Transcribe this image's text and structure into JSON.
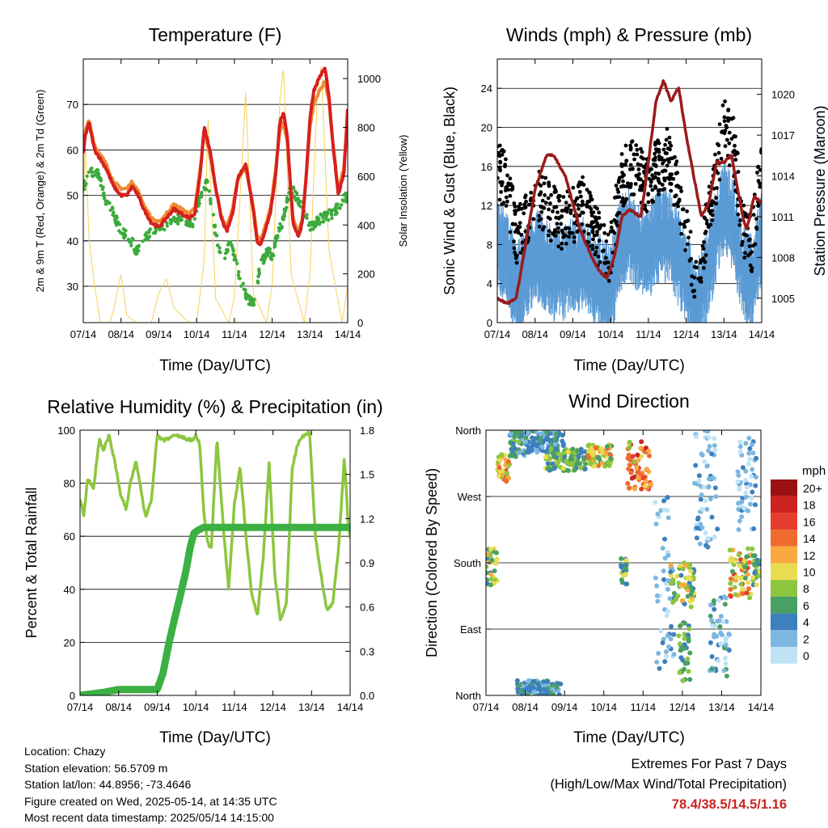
{
  "x_ticks": [
    "07/14",
    "08/14",
    "09/14",
    "10/14",
    "11/14",
    "12/14",
    "13/14",
    "14/14"
  ],
  "colors": {
    "temp2m": "#d62020",
    "temp9m": "#f08a30",
    "dewpoint": "#3caa3c",
    "solar": "#f5d25a",
    "wind": "#5b9bd5",
    "gust": "#000000",
    "pressure": "#9b1b1b",
    "rh": "#8cc63f",
    "precip": "#3cb043"
  },
  "legend": {
    "title": "mph",
    "labels": [
      "20+",
      "18",
      "16",
      "14",
      "12",
      "10",
      "8",
      "6",
      "4",
      "2",
      "0"
    ],
    "colors": [
      "#9b1111",
      "#cc2222",
      "#e53e2e",
      "#f06b2e",
      "#f9a940",
      "#e9dc50",
      "#8cc63f",
      "#4aa064",
      "#3d7fbf",
      "#7db7e0",
      "#bfe3f5"
    ]
  },
  "info": {
    "location": "Location: Chazy",
    "elevation": "Station elevation: 56.5709 m",
    "latlon": "Station lat/lon: 44.8956; -73.4646",
    "created": "Figure created on Wed, 2025-05-14, at 14:35 UTC",
    "recent": "Most recent data timestamp: 2025/05/14 14:15:00"
  },
  "extremes": {
    "title": "Extremes For Past 7 Days",
    "subtitle": "(High/Low/Max Wind/Total Precipitation)",
    "values": "78.4/38.5/14.5/1.16"
  },
  "chart_data": [
    {
      "type": "line",
      "title": "Temperature (F)",
      "xlabel": "Time (Day/UTC)",
      "ylabel": "2m & 9m T (Red, Orange) & 2m Td (Green)",
      "y2label": "Solar Insolation (Yellow)",
      "x_range_days": [
        0,
        7
      ],
      "ylim": [
        22,
        80
      ],
      "y2lim": [
        0,
        1080
      ],
      "yticks": [
        30,
        40,
        50,
        60,
        70
      ],
      "y2ticks": [
        0,
        200,
        400,
        600,
        800,
        1000
      ],
      "series": [
        {
          "name": "2m T",
          "axis": "left",
          "color": "#d62020",
          "x": [
            0,
            0.05,
            0.15,
            0.3,
            0.45,
            0.6,
            0.8,
            1.0,
            1.15,
            1.3,
            1.45,
            1.6,
            1.8,
            2.0,
            2.2,
            2.4,
            2.6,
            2.8,
            2.95,
            3.1,
            3.2,
            3.35,
            3.5,
            3.65,
            3.8,
            3.95,
            4.1,
            4.3,
            4.5,
            4.6,
            4.7,
            4.8,
            4.95,
            5.1,
            5.2,
            5.3,
            5.4,
            5.55,
            5.7,
            5.8,
            5.9,
            6.0,
            6.1,
            6.25,
            6.4,
            6.5,
            6.6,
            6.75,
            6.9,
            7.0
          ],
          "y": [
            59,
            63,
            66,
            60,
            58,
            56,
            52,
            50,
            50,
            52,
            50,
            47,
            44,
            43,
            45,
            47,
            46,
            45,
            46,
            55,
            65,
            60,
            52,
            45,
            42,
            46,
            54,
            57,
            47,
            40,
            39,
            42,
            46,
            55,
            66,
            68,
            63,
            44,
            41,
            44,
            54,
            67,
            73,
            76,
            78,
            72,
            62,
            50,
            55,
            69
          ]
        },
        {
          "name": "9m T",
          "axis": "left",
          "color": "#f08a30",
          "x": [
            0,
            0.05,
            0.15,
            0.3,
            0.45,
            0.6,
            0.8,
            1.0,
            1.15,
            1.3,
            1.45,
            1.6,
            1.8,
            2.0,
            2.2,
            2.4,
            2.6,
            2.8,
            2.95,
            3.1,
            3.2,
            3.35,
            3.5,
            3.65,
            3.8,
            3.95,
            4.1,
            4.3,
            4.5,
            4.6,
            4.7,
            4.8,
            4.95,
            5.1,
            5.2,
            5.3,
            5.4,
            5.55,
            5.7,
            5.8,
            5.9,
            6.0,
            6.1,
            6.25,
            6.4,
            6.5,
            6.6,
            6.75,
            6.9,
            7.0
          ],
          "y": [
            60,
            64,
            66.5,
            61,
            59,
            57,
            53,
            51.5,
            51.5,
            53,
            51,
            48,
            45,
            44,
            46,
            48,
            47,
            46,
            47,
            56,
            64,
            59,
            52,
            45.5,
            43,
            47,
            54,
            56,
            47.5,
            41,
            40,
            43,
            47,
            56,
            64,
            66,
            62,
            45,
            42,
            45,
            54,
            65,
            70,
            73,
            75,
            71,
            62,
            51,
            56,
            68
          ]
        },
        {
          "name": "2m Td",
          "axis": "left",
          "color": "#3caa3c",
          "x": [
            0,
            0.2,
            0.4,
            0.6,
            0.8,
            1.0,
            1.2,
            1.4,
            1.6,
            1.8,
            2.0,
            2.3,
            2.6,
            2.9,
            3.1,
            3.3,
            3.5,
            3.7,
            3.9,
            4.1,
            4.3,
            4.5,
            4.7,
            4.9,
            5.0,
            5.1,
            5.3,
            5.5,
            5.8,
            6.0,
            6.3,
            6.6,
            6.8,
            7.0
          ],
          "y": [
            52,
            55,
            55,
            49,
            46,
            42,
            41,
            38,
            40,
            42,
            43,
            44,
            45,
            44,
            50,
            53,
            42,
            35,
            40,
            33,
            28,
            26,
            35,
            38,
            36,
            40,
            45,
            52,
            47,
            43,
            45,
            46,
            48,
            50
          ]
        },
        {
          "name": "Solar Insolation",
          "axis": "right",
          "color": "#f5d25a",
          "x": [
            0,
            0.05,
            0.15,
            0.3,
            0.45,
            0.7,
            0.8,
            1.0,
            1.15,
            1.4,
            1.8,
            2.0,
            2.2,
            2.4,
            2.8,
            3.0,
            3.2,
            3.3,
            3.5,
            3.85,
            4.0,
            4.2,
            4.3,
            4.5,
            4.85,
            5.0,
            5.2,
            5.3,
            5.5,
            5.85,
            6.0,
            6.2,
            6.3,
            6.5,
            6.85,
            7.0
          ],
          "y": [
            500,
            750,
            350,
            150,
            0,
            0,
            50,
            200,
            30,
            0,
            0,
            120,
            180,
            60,
            0,
            0,
            250,
            850,
            100,
            0,
            100,
            650,
            950,
            120,
            0,
            150,
            900,
            1050,
            200,
            0,
            200,
            950,
            1050,
            300,
            0,
            150
          ]
        }
      ]
    },
    {
      "type": "scatter",
      "title": "Winds (mph) & Pressure (mb)",
      "xlabel": "Time (Day/UTC)",
      "ylabel": "Sonic Wind & Gust (Blue, Black)",
      "y2label": "Station Pressure (Maroon)",
      "x_range_days": [
        0,
        7
      ],
      "ylim": [
        0,
        27
      ],
      "y2lim": [
        1003.2,
        1022.6
      ],
      "yticks": [
        0,
        4,
        8,
        12,
        16,
        20,
        24
      ],
      "y2ticks": [
        1005,
        1008,
        1011,
        1014,
        1017,
        1020
      ],
      "series": [
        {
          "name": "Sonic Wind",
          "axis": "left",
          "color": "#5b9bd5",
          "x": [
            0,
            0.25,
            0.5,
            0.75,
            1.0,
            1.25,
            1.5,
            1.75,
            2.0,
            2.25,
            2.5,
            2.75,
            3.0,
            3.25,
            3.5,
            3.75,
            4.0,
            4.25,
            4.5,
            4.75,
            5.0,
            5.25,
            5.5,
            5.75,
            6.0,
            6.25,
            6.5,
            6.75,
            7.0
          ],
          "y": [
            9,
            8,
            4,
            6,
            8,
            7,
            6,
            6,
            7,
            7,
            6,
            5,
            4,
            9,
            10,
            9,
            8,
            10,
            10,
            8,
            6,
            2,
            5,
            9,
            13,
            11,
            6,
            5,
            10
          ]
        },
        {
          "name": "Gust",
          "axis": "left",
          "color": "#000000",
          "x": [
            0,
            0.25,
            0.5,
            0.75,
            1.0,
            1.25,
            1.5,
            1.75,
            2.0,
            2.25,
            2.5,
            2.75,
            3.0,
            3.25,
            3.5,
            3.75,
            4.0,
            4.25,
            4.5,
            4.75,
            5.0,
            5.25,
            5.5,
            5.75,
            6.0,
            6.25,
            6.5,
            6.75,
            7.0
          ],
          "y": [
            16,
            14,
            9,
            10,
            13,
            12,
            11,
            10,
            11,
            12,
            10,
            8,
            7,
            14,
            16,
            15,
            14,
            16,
            17,
            14,
            10,
            4,
            9,
            14,
            20,
            18,
            10,
            8,
            17
          ]
        },
        {
          "name": "Station Pressure",
          "axis": "right",
          "color": "#9b1b1b",
          "x": [
            0,
            0.25,
            0.5,
            0.75,
            1.0,
            1.3,
            1.5,
            1.8,
            2.0,
            2.2,
            2.5,
            2.7,
            2.9,
            3.1,
            3.3,
            3.5,
            3.8,
            4.0,
            4.2,
            4.4,
            4.6,
            4.8,
            5.0,
            5.2,
            5.4,
            5.6,
            5.8,
            6.0,
            6.2,
            6.5,
            6.6,
            6.8,
            7.0
          ],
          "y": [
            1005,
            1004.6,
            1005,
            1009,
            1013,
            1015.5,
            1015.5,
            1014,
            1012,
            1010,
            1008,
            1007,
            1006.5,
            1008,
            1011,
            1011.5,
            1011,
            1015,
            1019.5,
            1021,
            1019.5,
            1020.5,
            1017,
            1014,
            1011,
            1012,
            1015,
            1015,
            1015.5,
            1011,
            1010,
            1012.5,
            1012
          ]
        }
      ]
    },
    {
      "type": "line",
      "title": "Relative Humidity (%) & Precipitation (in)",
      "xlabel": "Time (Day/UTC)",
      "ylabel": "Percent & Total Rainfall",
      "x_range_days": [
        0,
        7
      ],
      "ylim": [
        0,
        100
      ],
      "y2lim": [
        0,
        1.8
      ],
      "yticks": [
        0,
        20,
        40,
        60,
        80,
        100
      ],
      "y2ticks": [
        "0.0",
        "0.3",
        "0.6",
        "0.9",
        "1.2",
        "1.5",
        "1.8"
      ],
      "series": [
        {
          "name": "Relative Humidity",
          "axis": "left",
          "color": "#8cc63f",
          "x": [
            0,
            0.1,
            0.2,
            0.35,
            0.5,
            0.6,
            0.75,
            0.9,
            1.05,
            1.2,
            1.3,
            1.45,
            1.55,
            1.7,
            1.85,
            2.0,
            2.15,
            2.3,
            2.5,
            2.7,
            2.9,
            3.0,
            3.1,
            3.2,
            3.3,
            3.4,
            3.55,
            3.7,
            3.85,
            4.0,
            4.15,
            4.3,
            4.45,
            4.6,
            4.75,
            4.9,
            5.05,
            5.2,
            5.35,
            5.5,
            5.65,
            5.8,
            5.95,
            6.1,
            6.25,
            6.4,
            6.55,
            6.7,
            6.85,
            6.95,
            7.0
          ],
          "y": [
            74,
            68,
            82,
            78,
            97,
            92,
            98,
            88,
            76,
            70,
            80,
            88,
            80,
            67,
            74,
            98,
            96,
            97,
            98,
            97,
            96,
            98,
            95,
            70,
            58,
            55,
            97,
            66,
            40,
            72,
            86,
            60,
            38,
            30,
            52,
            88,
            45,
            28,
            35,
            86,
            95,
            98,
            99,
            60,
            45,
            32,
            35,
            55,
            90,
            65,
            59
          ]
        },
        {
          "name": "Total Precipitation",
          "axis": "right",
          "color": "#3cb043",
          "x": [
            0,
            0.3,
            0.6,
            1.0,
            1.5,
            2.0,
            2.15,
            2.3,
            2.45,
            2.6,
            2.75,
            2.85,
            2.95,
            3.05,
            3.2,
            3.5,
            4.0,
            5.0,
            6.0,
            7.0
          ],
          "y": [
            0,
            0.01,
            0.02,
            0.04,
            0.04,
            0.04,
            0.15,
            0.35,
            0.52,
            0.68,
            0.85,
            1.0,
            1.1,
            1.12,
            1.14,
            1.14,
            1.14,
            1.14,
            1.14,
            1.14
          ]
        }
      ]
    },
    {
      "type": "scatter",
      "title": "Wind Direction",
      "xlabel": "Time (Day/UTC)",
      "ylabel": "Direction (Colored By Speed)",
      "x_range_days": [
        0,
        7
      ],
      "y_range_deg": [
        0,
        360
      ],
      "yticks": [
        {
          "deg": 360,
          "label": "North"
        },
        {
          "deg": 270,
          "label": "West"
        },
        {
          "deg": 180,
          "label": "South"
        },
        {
          "deg": 90,
          "label": "East"
        },
        {
          "deg": 0,
          "label": "North"
        }
      ],
      "color_scale": "mph",
      "clusters": [
        {
          "x": [
            0.0,
            0.3
          ],
          "deg": [
            150,
            200
          ],
          "speed": [
            4,
            12
          ]
        },
        {
          "x": [
            0.3,
            0.6
          ],
          "deg": [
            290,
            330
          ],
          "speed": [
            8,
            16
          ]
        },
        {
          "x": [
            0.6,
            1.0
          ],
          "deg": [
            320,
            360
          ],
          "speed": [
            2,
            8
          ]
        },
        {
          "x": [
            0.8,
            1.9
          ],
          "deg": [
            0,
            20
          ],
          "speed": [
            2,
            6
          ]
        },
        {
          "x": [
            1.0,
            2.0
          ],
          "deg": [
            330,
            360
          ],
          "speed": [
            2,
            6
          ]
        },
        {
          "x": [
            1.5,
            2.6
          ],
          "deg": [
            305,
            335
          ],
          "speed": [
            4,
            10
          ]
        },
        {
          "x": [
            2.6,
            3.2
          ],
          "deg": [
            310,
            340
          ],
          "speed": [
            6,
            14
          ]
        },
        {
          "x": [
            3.4,
            3.6
          ],
          "deg": [
            150,
            190
          ],
          "speed": [
            4,
            10
          ]
        },
        {
          "x": [
            3.6,
            4.2
          ],
          "deg": [
            280,
            345
          ],
          "speed": [
            8,
            18
          ]
        },
        {
          "x": [
            4.3,
            4.8
          ],
          "deg": [
            30,
            270
          ],
          "speed": [
            0,
            4
          ]
        },
        {
          "x": [
            4.7,
            5.3
          ],
          "deg": [
            120,
            180
          ],
          "speed": [
            4,
            12
          ]
        },
        {
          "x": [
            4.9,
            5.2
          ],
          "deg": [
            20,
            100
          ],
          "speed": [
            4,
            8
          ]
        },
        {
          "x": [
            5.3,
            5.9
          ],
          "deg": [
            200,
            360
          ],
          "speed": [
            0,
            4
          ]
        },
        {
          "x": [
            5.7,
            6.2
          ],
          "deg": [
            20,
            140
          ],
          "speed": [
            0,
            6
          ]
        },
        {
          "x": [
            6.2,
            6.8
          ],
          "deg": [
            130,
            200
          ],
          "speed": [
            6,
            16
          ]
        },
        {
          "x": [
            6.8,
            7.0
          ],
          "deg": [
            150,
            190
          ],
          "speed": [
            4,
            10
          ]
        },
        {
          "x": [
            6.4,
            6.9
          ],
          "deg": [
            220,
            350
          ],
          "speed": [
            0,
            4
          ]
        }
      ]
    }
  ]
}
